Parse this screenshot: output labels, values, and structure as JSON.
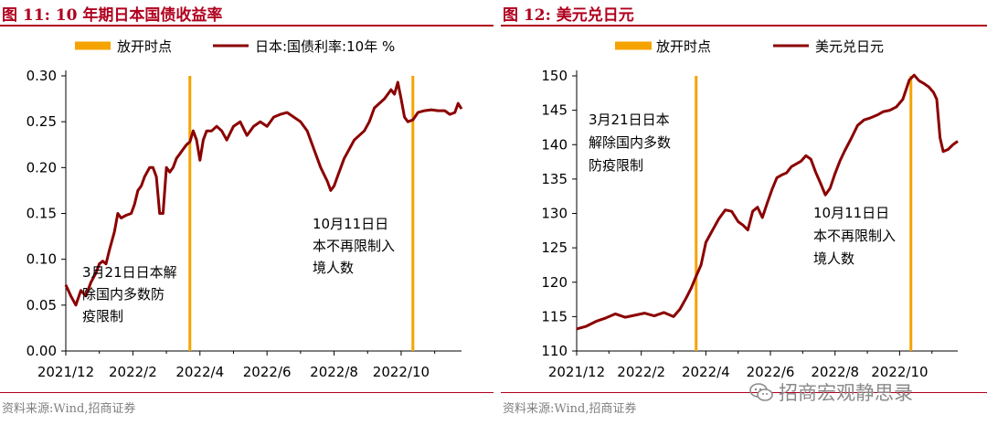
{
  "colors": {
    "accent": "#b0001e",
    "series": "#8b0000",
    "marker": "#f5a300",
    "muted": "#7f7f7f"
  },
  "watermark": {
    "text": "招商宏观静思录",
    "icon": "wechat-icon"
  },
  "charts": [
    {
      "figure_title": "图 11:  10 年期日本国债收益率",
      "source": "资料来源:Wind,招商证券",
      "legend": {
        "marker_label": "放开时点",
        "series_label": "日本:国债利率:10年 %"
      },
      "annotations": [
        {
          "lines": [
            "3月21日日本解",
            "除国内多数防",
            "疫限制"
          ]
        },
        {
          "lines": [
            "10月11日日",
            "本不再限制入",
            "境人数"
          ]
        }
      ]
    },
    {
      "figure_title": "图 12:  美元兑日元",
      "source": "资料来源:Wind,招商证券",
      "legend": {
        "marker_label": "放开时点",
        "series_label": "美元兑日元"
      },
      "annotations": [
        {
          "lines": [
            "3月21日日本",
            "解除国内多数",
            "防疫限制"
          ]
        },
        {
          "lines": [
            "10月11日日",
            "本不再限制入",
            "境人数"
          ]
        }
      ]
    }
  ],
  "chart_data": [
    {
      "type": "line",
      "title": "10 年期日本国债收益率",
      "xlabel": "",
      "ylabel": "",
      "ylim": [
        0,
        0.3
      ],
      "yticks": [
        "0.00",
        "0.05",
        "0.10",
        "0.15",
        "0.20",
        "0.25",
        "0.30"
      ],
      "xlim": [
        0,
        11.8
      ],
      "xticks": [
        {
          "pos": 0,
          "label": "2021/12"
        },
        {
          "pos": 2,
          "label": "2022/2"
        },
        {
          "pos": 4,
          "label": "2022/4"
        },
        {
          "pos": 6,
          "label": "2022/6"
        },
        {
          "pos": 8,
          "label": "2022/8"
        },
        {
          "pos": 10,
          "label": "2022/10"
        }
      ],
      "vlines": [
        3.7,
        10.35
      ],
      "series": [
        {
          "name": "日本:国债利率:10年 %",
          "x": [
            0.0,
            0.15,
            0.3,
            0.45,
            0.6,
            0.75,
            0.9,
            1.0,
            1.1,
            1.2,
            1.3,
            1.45,
            1.55,
            1.65,
            1.8,
            1.95,
            2.05,
            2.15,
            2.25,
            2.35,
            2.5,
            2.6,
            2.7,
            2.8,
            2.9,
            3.0,
            3.1,
            3.2,
            3.3,
            3.4,
            3.5,
            3.6,
            3.7,
            3.8,
            3.9,
            4.0,
            4.1,
            4.2,
            4.35,
            4.5,
            4.65,
            4.8,
            5.0,
            5.2,
            5.4,
            5.6,
            5.8,
            6.0,
            6.2,
            6.4,
            6.6,
            6.8,
            7.0,
            7.2,
            7.4,
            7.6,
            7.8,
            7.9,
            8.0,
            8.1,
            8.2,
            8.3,
            8.45,
            8.6,
            8.75,
            8.9,
            9.05,
            9.2,
            9.35,
            9.5,
            9.6,
            9.7,
            9.8,
            9.9,
            10.0,
            10.1,
            10.2,
            10.35,
            10.5,
            10.7,
            10.9,
            11.1,
            11.3,
            11.45,
            11.6,
            11.7,
            11.8
          ],
          "values": [
            0.072,
            0.06,
            0.05,
            0.066,
            0.06,
            0.075,
            0.085,
            0.095,
            0.098,
            0.095,
            0.11,
            0.13,
            0.15,
            0.145,
            0.148,
            0.15,
            0.16,
            0.175,
            0.18,
            0.19,
            0.2,
            0.2,
            0.19,
            0.15,
            0.15,
            0.2,
            0.195,
            0.2,
            0.21,
            0.215,
            0.22,
            0.225,
            0.228,
            0.24,
            0.23,
            0.208,
            0.23,
            0.24,
            0.24,
            0.245,
            0.24,
            0.23,
            0.245,
            0.25,
            0.235,
            0.245,
            0.25,
            0.245,
            0.255,
            0.258,
            0.26,
            0.255,
            0.25,
            0.24,
            0.22,
            0.2,
            0.185,
            0.175,
            0.18,
            0.19,
            0.2,
            0.21,
            0.22,
            0.23,
            0.235,
            0.24,
            0.25,
            0.265,
            0.27,
            0.275,
            0.28,
            0.285,
            0.28,
            0.293,
            0.275,
            0.255,
            0.25,
            0.252,
            0.26,
            0.262,
            0.263,
            0.262,
            0.262,
            0.258,
            0.26,
            0.27,
            0.264
          ]
        }
      ]
    },
    {
      "type": "line",
      "title": "美元兑日元",
      "xlabel": "",
      "ylabel": "",
      "ylim": [
        110,
        150
      ],
      "yticks": [
        "110",
        "115",
        "120",
        "125",
        "130",
        "135",
        "140",
        "145",
        "150"
      ],
      "xlim": [
        0,
        11.8
      ],
      "xticks": [
        {
          "pos": 0,
          "label": "2021/12"
        },
        {
          "pos": 2,
          "label": "2022/2"
        },
        {
          "pos": 4,
          "label": "2022/4"
        },
        {
          "pos": 6,
          "label": "2022/6"
        },
        {
          "pos": 8,
          "label": "2022/8"
        },
        {
          "pos": 10,
          "label": "2022/10"
        }
      ],
      "vlines": [
        3.7,
        10.35
      ],
      "series": [
        {
          "name": "美元兑日元",
          "x": [
            0.0,
            0.3,
            0.6,
            0.9,
            1.2,
            1.5,
            1.8,
            2.1,
            2.4,
            2.7,
            3.0,
            3.2,
            3.4,
            3.55,
            3.7,
            3.85,
            4.0,
            4.2,
            4.4,
            4.6,
            4.8,
            5.0,
            5.15,
            5.3,
            5.45,
            5.6,
            5.75,
            5.9,
            6.05,
            6.2,
            6.35,
            6.5,
            6.65,
            6.8,
            6.95,
            7.1,
            7.25,
            7.4,
            7.55,
            7.7,
            7.85,
            8.0,
            8.15,
            8.3,
            8.5,
            8.7,
            8.9,
            9.1,
            9.3,
            9.5,
            9.7,
            9.9,
            10.1,
            10.3,
            10.45,
            10.6,
            10.75,
            10.9,
            11.05,
            11.15,
            11.25,
            11.35,
            11.5,
            11.65,
            11.8
          ],
          "values": [
            113.2,
            113.6,
            114.3,
            114.8,
            115.4,
            114.9,
            115.2,
            115.5,
            115.1,
            115.6,
            115.0,
            116.1,
            117.8,
            119.2,
            120.9,
            122.5,
            125.8,
            127.5,
            129.2,
            130.5,
            130.3,
            128.8,
            128.3,
            127.6,
            130.3,
            130.9,
            129.4,
            131.5,
            133.5,
            135.2,
            135.6,
            135.9,
            136.8,
            137.2,
            137.6,
            138.4,
            137.9,
            136.0,
            134.4,
            132.7,
            133.7,
            135.8,
            137.6,
            139.1,
            140.9,
            142.8,
            143.6,
            143.9,
            144.3,
            144.8,
            145.0,
            145.5,
            146.6,
            149.4,
            150.1,
            149.3,
            148.9,
            148.4,
            147.6,
            146.6,
            141.0,
            139.0,
            139.3,
            140.0,
            140.5
          ]
        }
      ]
    }
  ]
}
